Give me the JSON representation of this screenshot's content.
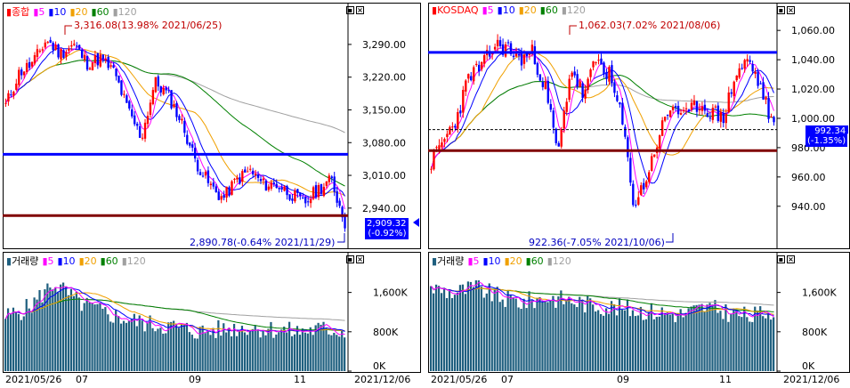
{
  "colors": {
    "up": "#ff0000",
    "down": "#0000ff",
    "ma5": "#ff00ff",
    "ma10": "#0000ff",
    "ma20": "#f0a000",
    "ma60": "#008000",
    "ma120": "#a0a0a0",
    "volume": "#1f5f7f",
    "resistance": "#0000ff",
    "support": "#800000",
    "badge": "#0000ff"
  },
  "icons": [
    "menu-square-icon",
    "close-x-icon"
  ],
  "chart_data": [
    {
      "id": "kospi-price",
      "type": "candlestick",
      "legend": {
        "marker": "▮",
        "name": "종합",
        "periods": [
          "5",
          "10",
          "20",
          "60",
          "120"
        ]
      },
      "y_ticks": [
        "3,290.00",
        "3,220.00",
        "3,150.00",
        "3,080.00",
        "3,010.00",
        "2,940.00"
      ],
      "ylim": [
        2875,
        3345
      ],
      "current": {
        "value": "2,909.32",
        "change": "(-0.92%)"
      },
      "high_note": "3,316.08(13.98% 2021/06/25)",
      "low_note": "2,890.78(-0.64% 2021/11/29)",
      "hlines": [
        3055,
        2924
      ],
      "series": [
        {
          "name": "5"
        },
        {
          "name": "10"
        },
        {
          "name": "20"
        },
        {
          "name": "60"
        },
        {
          "name": "120"
        }
      ]
    },
    {
      "id": "kospi-volume",
      "type": "bar",
      "legend": {
        "marker": "▮",
        "name": "거래량",
        "periods": [
          "5",
          "10",
          "20",
          "60",
          "120"
        ]
      },
      "y_ticks": [
        "1,600K",
        "800K",
        "0K"
      ],
      "ylim": [
        0,
        2100
      ]
    },
    {
      "id": "kosdaq-price",
      "type": "candlestick",
      "legend": {
        "marker": "▮",
        "name": "KOSDAQ",
        "periods": [
          "5",
          "10",
          "20",
          "60",
          "120"
        ]
      },
      "y_ticks": [
        "1,060.00",
        "1,040.00",
        "1,020.00",
        "1,000.00",
        "980.00",
        "960.00",
        "940.00"
      ],
      "ylim": [
        918,
        1068
      ],
      "current": {
        "value": "992.34",
        "change": "(-1.35%)"
      },
      "high_note": "1,062.03(7.02% 2021/08/06)",
      "low_note": "922.36(-7.05% 2021/10/06)",
      "hlines": [
        1045,
        978
      ],
      "dashed": 992.3
    },
    {
      "id": "kosdaq-volume",
      "type": "bar",
      "legend": {
        "marker": "▮",
        "name": "거래량",
        "periods": [
          "5",
          "10",
          "20",
          "60",
          "120"
        ]
      },
      "y_ticks": [
        "1,600K",
        "800K",
        "0K"
      ],
      "ylim": [
        0,
        2100
      ]
    }
  ],
  "x_axis": {
    "left": [
      "2021/05/26",
      "07",
      "09",
      "11",
      "2021/12/06"
    ],
    "right": [
      "2021/05/26",
      "07",
      "09",
      "11",
      "2021/12/06"
    ]
  }
}
